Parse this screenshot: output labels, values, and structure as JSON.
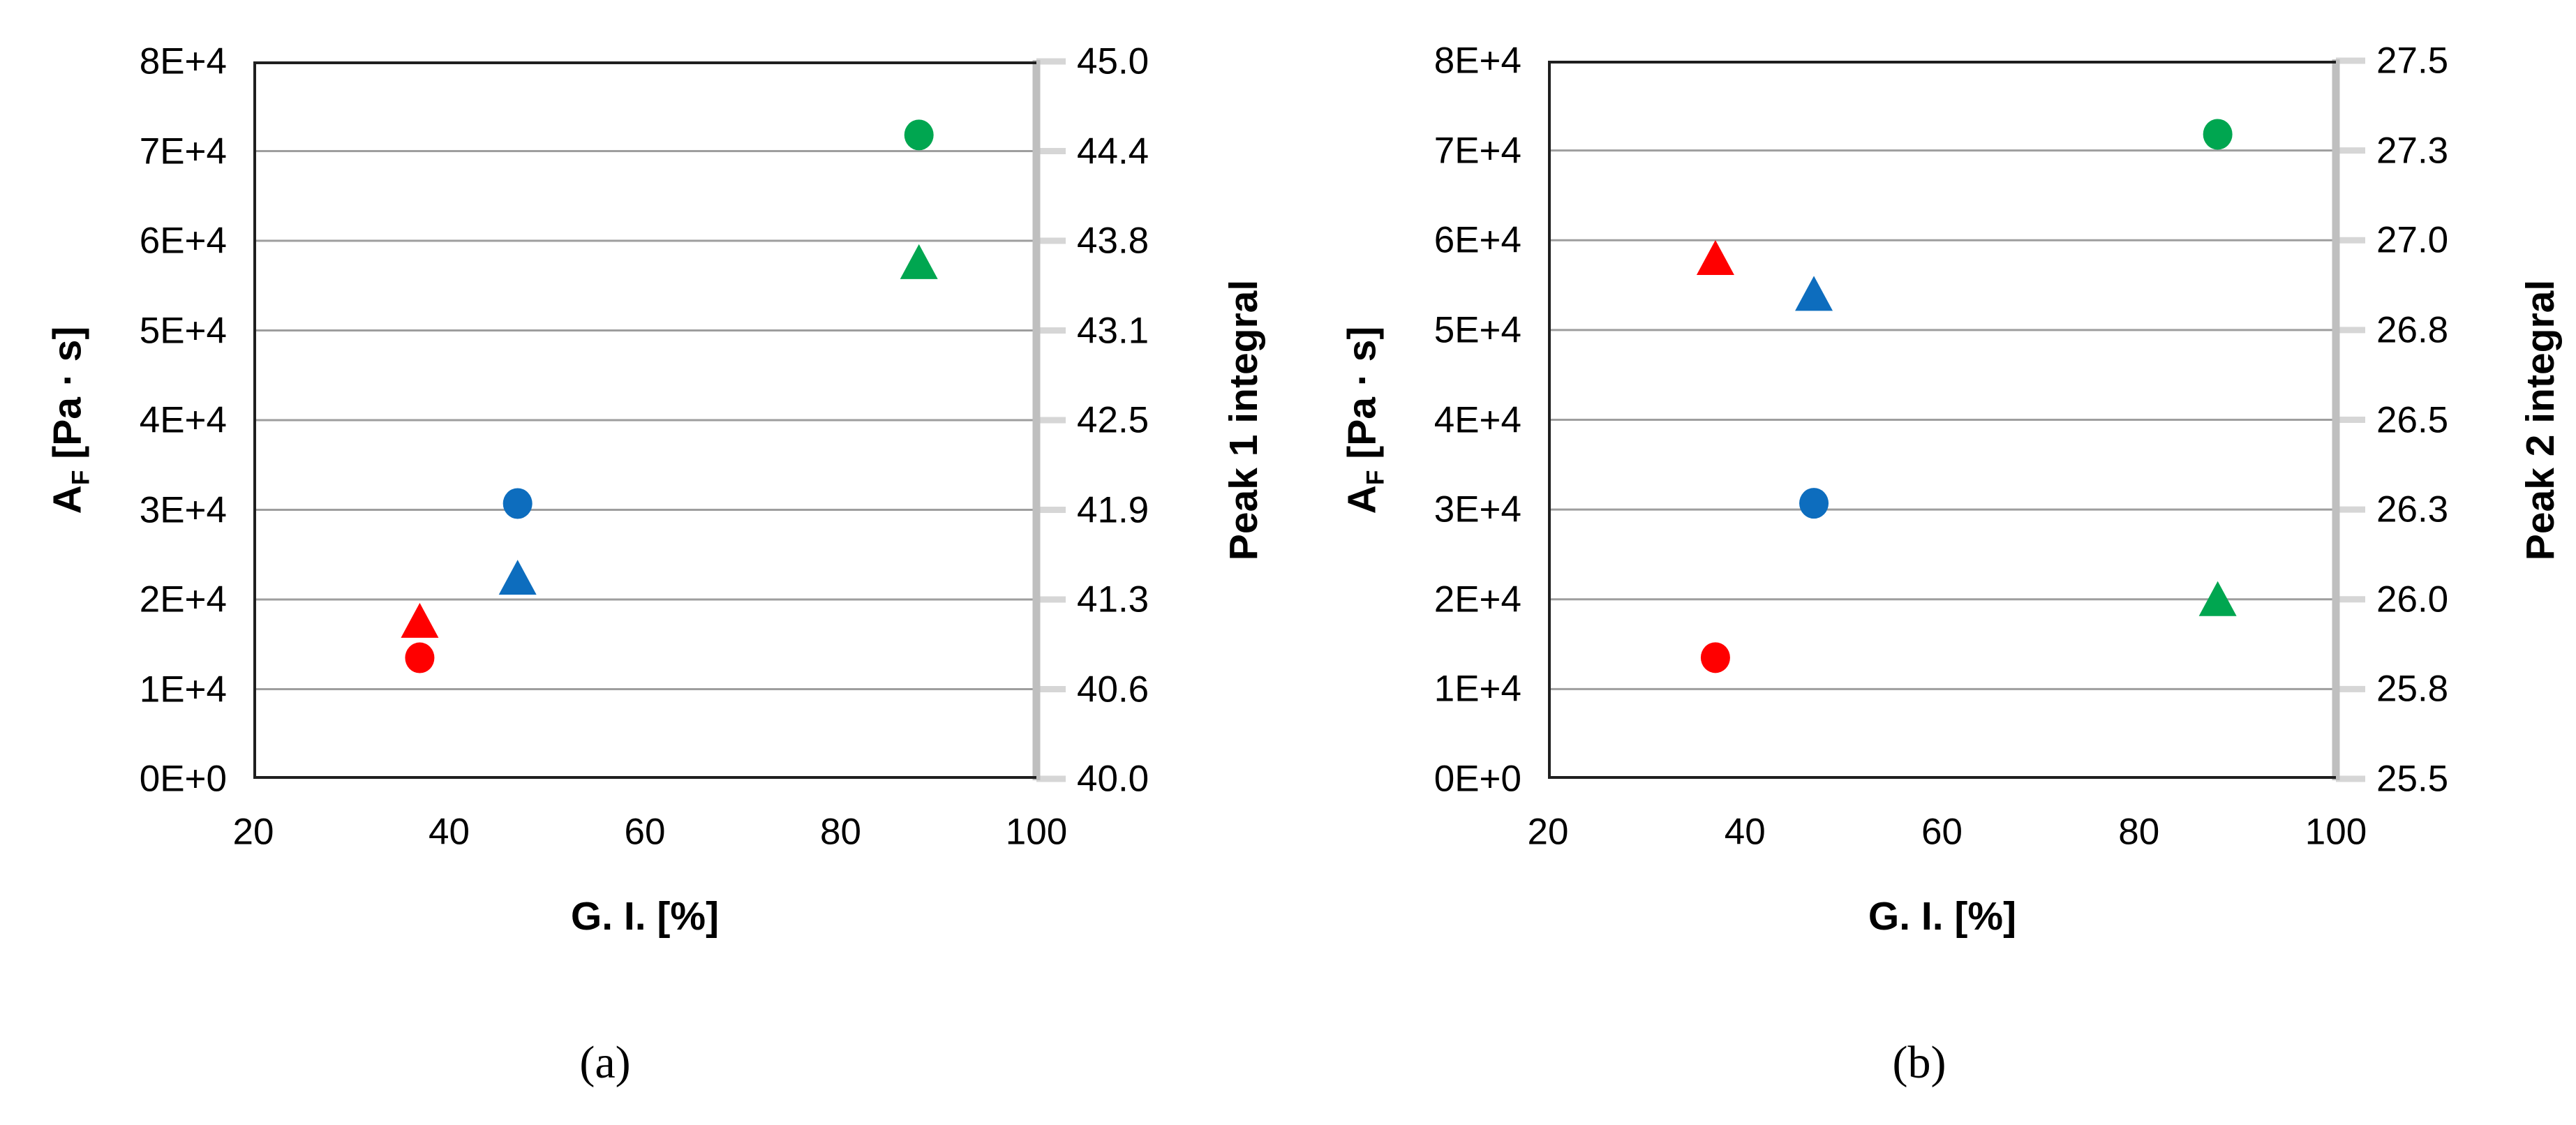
{
  "figure": {
    "background": "#ffffff",
    "palette": {
      "red": "#ff0000",
      "blue": "#0d6dbe",
      "green": "#00a650"
    },
    "grid_color": "#9e9e9e",
    "frame_color": "#1f1f1f",
    "right_axis_color": "#bfbfbf",
    "right_tick_color": "#d6d6d6"
  },
  "chart_data": [
    {
      "type": "scatter",
      "caption": "(a)",
      "xlabel": "G. I. [%]",
      "xlim": [
        20,
        100
      ],
      "x_ticks": [
        "20",
        "40",
        "60",
        "80",
        "100"
      ],
      "grid": "horizontal-on",
      "legend": "none",
      "y_left": {
        "label_main": "A",
        "label_sub": "F",
        "label_unit": " [Pa · s]",
        "lim": [
          0,
          80000
        ],
        "ticks_bottom_to_top": [
          "0E+0",
          "1E+4",
          "2E+4",
          "3E+4",
          "4E+4",
          "5E+4",
          "6E+4",
          "7E+4",
          "8E+4"
        ]
      },
      "y_right": {
        "label": "Peak 1 integral",
        "lim": [
          40.0,
          45.0
        ],
        "ticks_bottom_to_top": [
          "40.0",
          "40.6",
          "41.3",
          "41.9",
          "42.5",
          "43.1",
          "43.8",
          "44.4",
          "45.0"
        ]
      },
      "series": [
        {
          "name": "A_F vs G.I.",
          "marker": "circle",
          "axis": "left",
          "points": [
            {
              "x": 37,
              "y": 13500,
              "color": "red"
            },
            {
              "x": 47,
              "y": 30700,
              "color": "blue"
            },
            {
              "x": 88,
              "y": 71800,
              "color": "green"
            }
          ]
        },
        {
          "name": "Peak 1 integral vs G.I.",
          "marker": "triangle",
          "axis": "right",
          "points": [
            {
              "x": 37,
              "y": 41.1,
              "color": "red"
            },
            {
              "x": 47,
              "y": 41.4,
              "color": "blue"
            },
            {
              "x": 88,
              "y": 43.6,
              "color": "green"
            }
          ]
        }
      ]
    },
    {
      "type": "scatter",
      "caption": "(b)",
      "xlabel": "G. I. [%]",
      "xlim": [
        20,
        100
      ],
      "x_ticks": [
        "20",
        "40",
        "60",
        "80",
        "100"
      ],
      "grid": "horizontal-on",
      "legend": "none",
      "y_left": {
        "label_main": "A",
        "label_sub": "F",
        "label_unit": " [Pa · s]",
        "lim": [
          0,
          80000
        ],
        "ticks_bottom_to_top": [
          "0E+0",
          "1E+4",
          "2E+4",
          "3E+4",
          "4E+4",
          "5E+4",
          "6E+4",
          "7E+4",
          "8E+4"
        ]
      },
      "y_right": {
        "label": "Peak 2 integral",
        "lim": [
          25.5,
          27.5
        ],
        "ticks_bottom_to_top": [
          "25.5",
          "25.8",
          "26.0",
          "26.3",
          "26.5",
          "26.8",
          "27.0",
          "27.3",
          "27.5"
        ]
      },
      "series": [
        {
          "name": "A_F vs G.I.",
          "marker": "circle",
          "axis": "left",
          "points": [
            {
              "x": 37,
              "y": 13500,
              "color": "red"
            },
            {
              "x": 47,
              "y": 30700,
              "color": "blue"
            },
            {
              "x": 88,
              "y": 71800,
              "color": "green"
            }
          ]
        },
        {
          "name": "Peak 2 integral vs G.I.",
          "marker": "triangle",
          "axis": "right",
          "points": [
            {
              "x": 37,
              "y": 26.95,
              "color": "red"
            },
            {
              "x": 47,
              "y": 26.85,
              "color": "blue"
            },
            {
              "x": 88,
              "y": 26.0,
              "color": "green"
            }
          ]
        }
      ]
    }
  ]
}
